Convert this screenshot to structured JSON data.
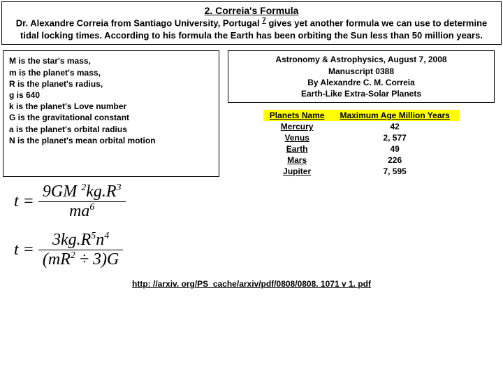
{
  "header": {
    "title": "2. Correia's Formula",
    "line1a": "Dr. Alexandre Correia from Santiago University, Portugal ",
    "sup": "7",
    "line1b": " gives yet another formula we can use to determine tidal locking times. According to his formula the Earth has been orbiting the Sun less than 50 million years."
  },
  "definitions": [
    "M is the star's mass,",
    "m is the planet's mass,",
    "R is the planet's radius,",
    "g is 640",
    "k is the planet's Love number",
    "G is the gravitational constant",
    "a is the planet's orbital radius",
    "N is the planet's mean orbital motion"
  ],
  "source": {
    "l1": "Astronomy & Astrophysics, August 7, 2008",
    "l2": "Manuscript 0388",
    "l3": "By Alexandre C. M. Correia",
    "l4": "Earth-Like Extra-Solar Planets"
  },
  "table": {
    "header_bg": "#ffff00",
    "col1": "Planets Name",
    "col2": "Maximum Age Million Years",
    "rows": [
      {
        "name": "Mercury",
        "age": "42"
      },
      {
        "name": "Venus",
        "age": "2, 577"
      },
      {
        "name": "Earth",
        "age": "49"
      },
      {
        "name": "Mars",
        "age": "226"
      },
      {
        "name": "Jupiter",
        "age": "7, 595"
      }
    ]
  },
  "formula1": {
    "lhs": "t",
    "num": "9GM <span class=\"s\">2</span>kg.R<span class=\"s\">3</span>",
    "den": "ma<span class=\"s\">6</span>"
  },
  "formula2": {
    "lhs": "t",
    "num": "3kg.R<span class=\"s\">5</span>n<span class=\"s\">4</span>",
    "den": "(mR<span class=\"s\">2</span> ÷ 3)G"
  },
  "footer": "http: //arxiv. org/PS_cache/arxiv/pdf/0808/0808. 1071 v 1. pdf"
}
